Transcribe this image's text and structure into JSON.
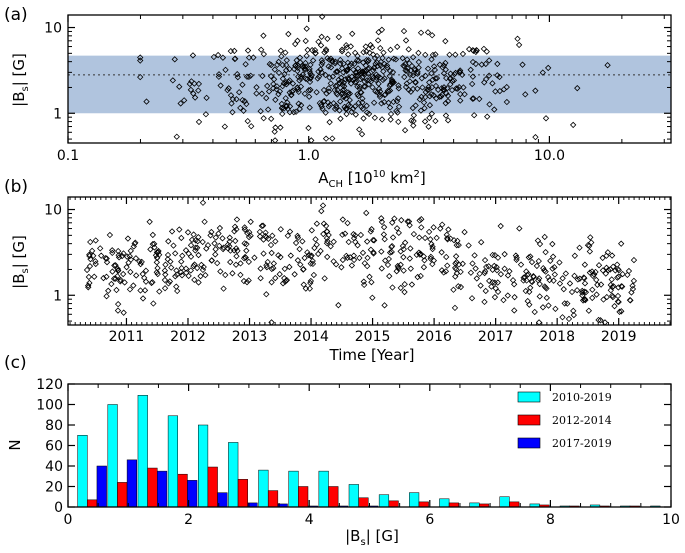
{
  "chart_data": [
    {
      "panel_label": "(a)",
      "type": "scatter",
      "marker": "open-diamond",
      "xscale": "log",
      "yscale": "log",
      "xlabel": {
        "main": "A",
        "sub": "CH",
        "rest": " [10",
        "sup": "10",
        "rest2": " km",
        "sup2": "2",
        "end": "]"
      },
      "ylabel": {
        "pre": "|B",
        "sub": "s",
        "post": "| [G]"
      },
      "xlim": [
        0.1,
        32
      ],
      "ylim": [
        0.45,
        14
      ],
      "xticks": [
        0.1,
        1.0,
        10.0
      ],
      "xtick_labels": [
        "0.1",
        "1.0",
        "10.0"
      ],
      "yticks": [
        1,
        10
      ],
      "ytick_labels": [
        "1",
        "10"
      ],
      "band": {
        "low": 1.0,
        "high": 4.7,
        "color": "#b0c4de"
      },
      "reference_line": {
        "value": 2.8,
        "style": "dotted"
      },
      "grid": false
    },
    {
      "panel_label": "(b)",
      "type": "scatter",
      "marker": "open-diamond",
      "yscale": "log",
      "xlabel": "Time [Year]",
      "ylabel": {
        "pre": "|B",
        "sub": "s",
        "post": "| [G]"
      },
      "xlim": [
        2010.05,
        2019.85
      ],
      "ylim": [
        0.45,
        14
      ],
      "xticks": [
        2011,
        2012,
        2013,
        2014,
        2015,
        2016,
        2017,
        2018,
        2019
      ],
      "xtick_labels": [
        "2011",
        "2012",
        "2013",
        "2014",
        "2015",
        "2016",
        "2017",
        "2018",
        "2019"
      ],
      "yticks": [
        1,
        10
      ],
      "ytick_labels": [
        "1",
        "10"
      ],
      "grid": false
    },
    {
      "panel_label": "(c)",
      "type": "bar",
      "xlabel": {
        "pre": "|B",
        "sub": "s",
        "post": "| [G]"
      },
      "ylabel": "N",
      "xlim": [
        0,
        10
      ],
      "ylim": [
        0,
        120
      ],
      "xticks": [
        0,
        2,
        4,
        6,
        8,
        10
      ],
      "xtick_labels": [
        "0",
        "2",
        "4",
        "6",
        "8",
        "10"
      ],
      "yticks": [
        0,
        20,
        40,
        60,
        80,
        100,
        120
      ],
      "ytick_labels": [
        "0",
        "20",
        "40",
        "60",
        "80",
        "100",
        "120"
      ],
      "legend_position": "top-right",
      "bin_centers": [
        0.4,
        0.9,
        1.4,
        1.9,
        2.4,
        2.9,
        3.4,
        3.9,
        4.4,
        4.9,
        5.4,
        5.9,
        6.4,
        6.9,
        7.4,
        7.9,
        8.4,
        8.9,
        9.4,
        9.9
      ],
      "series": [
        {
          "name": "2010-2019",
          "color": "#00ffff",
          "values": [
            70,
            100,
            109,
            89,
            80,
            63,
            36,
            35,
            35,
            22,
            12,
            14,
            8,
            4,
            10,
            3,
            1,
            2,
            1,
            1
          ]
        },
        {
          "name": "2012-2014",
          "color": "#ff0000",
          "values": [
            7,
            24,
            38,
            32,
            39,
            27,
            16,
            20,
            20,
            9,
            6,
            5,
            4,
            3,
            5,
            2,
            1,
            1,
            1,
            0
          ]
        },
        {
          "name": "2017-2019",
          "color": "#0000ff",
          "values": [
            40,
            46,
            35,
            26,
            14,
            4,
            3,
            1,
            1,
            1,
            0,
            0,
            0,
            0,
            0,
            0,
            0,
            0,
            0,
            0
          ]
        }
      ],
      "grid": false
    }
  ]
}
